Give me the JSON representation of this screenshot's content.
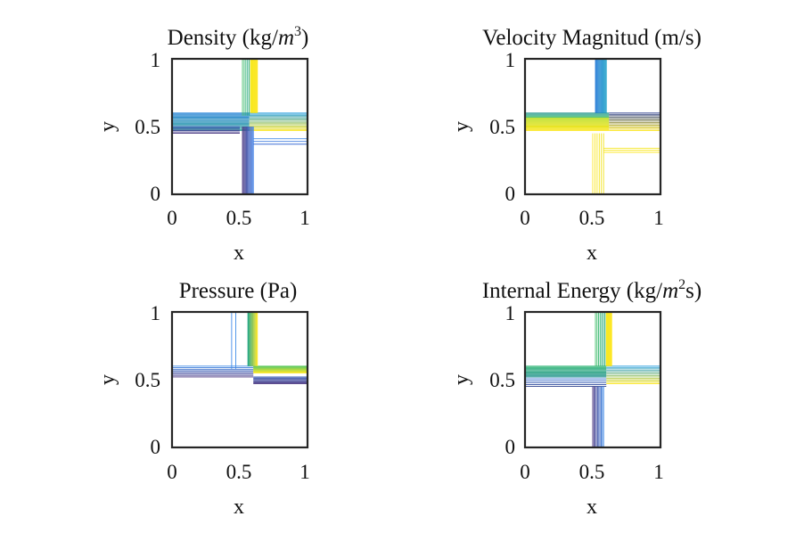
{
  "chart_data": [
    {
      "type": "contour",
      "title": "Density (kg/m³)",
      "title_main": "Density (kg/",
      "title_var": "m",
      "title_sup": "3",
      "title_end": ")",
      "xlabel": "x",
      "ylabel": "y",
      "xlim": [
        0,
        1
      ],
      "ylim": [
        0,
        1
      ],
      "xticks": [
        "0",
        "0.5",
        "1"
      ],
      "yticks": [
        "0",
        "0.5",
        "1"
      ],
      "bands": [
        {
          "dir": "h",
          "from": 0.0,
          "to": 0.57,
          "lo": 0.47,
          "hi": 0.6,
          "n": 18,
          "c0": "#38a69c",
          "c1": "#1f7fd6"
        },
        {
          "dir": "h",
          "from": 0.57,
          "to": 1.0,
          "lo": 0.47,
          "hi": 0.6,
          "n": 16,
          "c0": "#fde725",
          "c1": "#2b9fe0"
        },
        {
          "dir": "h",
          "from": 0.0,
          "to": 0.5,
          "lo": 0.45,
          "hi": 0.5,
          "n": 6,
          "c0": "#46327e",
          "c1": "#3b5fb8"
        },
        {
          "dir": "v",
          "from": 0.58,
          "to": 1.0,
          "lo": 0.52,
          "hi": 0.57,
          "n": 5,
          "c0": "#49c16d",
          "c1": "#21a685"
        },
        {
          "dir": "v",
          "from": 0.6,
          "to": 1.0,
          "lo": 0.58,
          "hi": 0.63,
          "n": 12,
          "c0": "#f7e81c",
          "c1": "#fde725"
        },
        {
          "dir": "v",
          "from": 0.0,
          "to": 0.5,
          "lo": 0.52,
          "hi": 0.6,
          "n": 12,
          "c0": "#46327e",
          "c1": "#3d7ee6"
        },
        {
          "dir": "h",
          "from": 0.6,
          "to": 1.0,
          "lo": 0.37,
          "hi": 0.41,
          "n": 3,
          "c0": "#3b6fd6",
          "c1": "#4a8fe8"
        }
      ]
    },
    {
      "type": "contour",
      "title": "Velocity Magnitud (m/s)",
      "title_main": "Velocity Magnitud (m/s)",
      "xlabel": "x",
      "ylabel": "y",
      "xlim": [
        0,
        1
      ],
      "ylim": [
        0,
        1
      ],
      "xticks": [
        "0",
        "0.5",
        "1"
      ],
      "yticks": [
        "0",
        "0.5",
        "1"
      ],
      "bands": [
        {
          "dir": "h",
          "from": 0.0,
          "to": 0.62,
          "lo": 0.47,
          "hi": 0.57,
          "n": 16,
          "c0": "#fde725",
          "c1": "#b8de29"
        },
        {
          "dir": "h",
          "from": 0.0,
          "to": 0.62,
          "lo": 0.57,
          "hi": 0.6,
          "n": 5,
          "c0": "#35b779",
          "c1": "#21918c"
        },
        {
          "dir": "h",
          "from": 0.62,
          "to": 1.0,
          "lo": 0.47,
          "hi": 0.6,
          "n": 14,
          "c0": "#fde725",
          "c1": "#2c3f8c"
        },
        {
          "dir": "v",
          "from": 0.6,
          "to": 1.0,
          "lo": 0.52,
          "hi": 0.6,
          "n": 14,
          "c0": "#2d7fd8",
          "c1": "#1ea1c9"
        },
        {
          "dir": "v",
          "from": 0.0,
          "to": 0.45,
          "lo": 0.5,
          "hi": 0.58,
          "n": 6,
          "c0": "#fde725",
          "c1": "#f0e21c"
        },
        {
          "dir": "h",
          "from": 0.58,
          "to": 1.0,
          "lo": 0.31,
          "hi": 0.34,
          "n": 3,
          "c0": "#fde725",
          "c1": "#f5e520"
        }
      ]
    },
    {
      "type": "contour",
      "title": "Pressure (Pa)",
      "title_main": "Pressure (Pa)",
      "xlabel": "x",
      "ylabel": "y",
      "xlim": [
        0,
        1
      ],
      "ylim": [
        0,
        1
      ],
      "xticks": [
        "0",
        "0.5",
        "1"
      ],
      "yticks": [
        "0",
        "0.5",
        "1"
      ],
      "bands": [
        {
          "dir": "h",
          "from": 0.0,
          "to": 0.6,
          "lo": 0.52,
          "hi": 0.6,
          "n": 8,
          "c0": "#46327e",
          "c1": "#3f8be8"
        },
        {
          "dir": "h",
          "from": 0.6,
          "to": 1.0,
          "lo": 0.47,
          "hi": 0.52,
          "n": 8,
          "c0": "#46327e",
          "c1": "#3b5fb8"
        },
        {
          "dir": "h",
          "from": 0.6,
          "to": 1.0,
          "lo": 0.55,
          "hi": 0.6,
          "n": 14,
          "c0": "#fde725",
          "c1": "#5ec962"
        },
        {
          "dir": "v",
          "from": 0.6,
          "to": 1.0,
          "lo": 0.56,
          "hi": 0.63,
          "n": 14,
          "c0": "#21a685",
          "c1": "#fde725"
        },
        {
          "dir": "v",
          "from": 0.58,
          "to": 1.0,
          "lo": 0.44,
          "hi": 0.47,
          "n": 2,
          "c0": "#3f8be8",
          "c1": "#3f8be8"
        }
      ]
    },
    {
      "type": "contour",
      "title": "Internal Energy (kg/m²s)",
      "title_main": "Internal Energy (kg/",
      "title_var": "m",
      "title_sup": "2",
      "title_end": "s)",
      "xlabel": "x",
      "ylabel": "y",
      "xlim": [
        0,
        1
      ],
      "ylim": [
        0,
        1
      ],
      "xticks": [
        "0",
        "0.5",
        "1"
      ],
      "yticks": [
        "0",
        "0.5",
        "1"
      ],
      "bands": [
        {
          "dir": "h",
          "from": 0.0,
          "to": 0.6,
          "lo": 0.45,
          "hi": 0.52,
          "n": 6,
          "c0": "#2c3f8c",
          "c1": "#3d7ee6"
        },
        {
          "dir": "h",
          "from": 0.0,
          "to": 0.6,
          "lo": 0.52,
          "hi": 0.6,
          "n": 12,
          "c0": "#21918c",
          "c1": "#35b779"
        },
        {
          "dir": "h",
          "from": 0.6,
          "to": 1.0,
          "lo": 0.47,
          "hi": 0.6,
          "n": 14,
          "c0": "#fde725",
          "c1": "#2b9fe0"
        },
        {
          "dir": "v",
          "from": 0.6,
          "to": 1.0,
          "lo": 0.52,
          "hi": 0.6,
          "n": 8,
          "c0": "#49c16d",
          "c1": "#21a685"
        },
        {
          "dir": "v",
          "from": 0.6,
          "to": 1.0,
          "lo": 0.6,
          "hi": 0.64,
          "n": 10,
          "c0": "#f7e81c",
          "c1": "#fde725"
        },
        {
          "dir": "v",
          "from": 0.0,
          "to": 0.45,
          "lo": 0.5,
          "hi": 0.58,
          "n": 10,
          "c0": "#46327e",
          "c1": "#3f8be8"
        }
      ]
    }
  ]
}
